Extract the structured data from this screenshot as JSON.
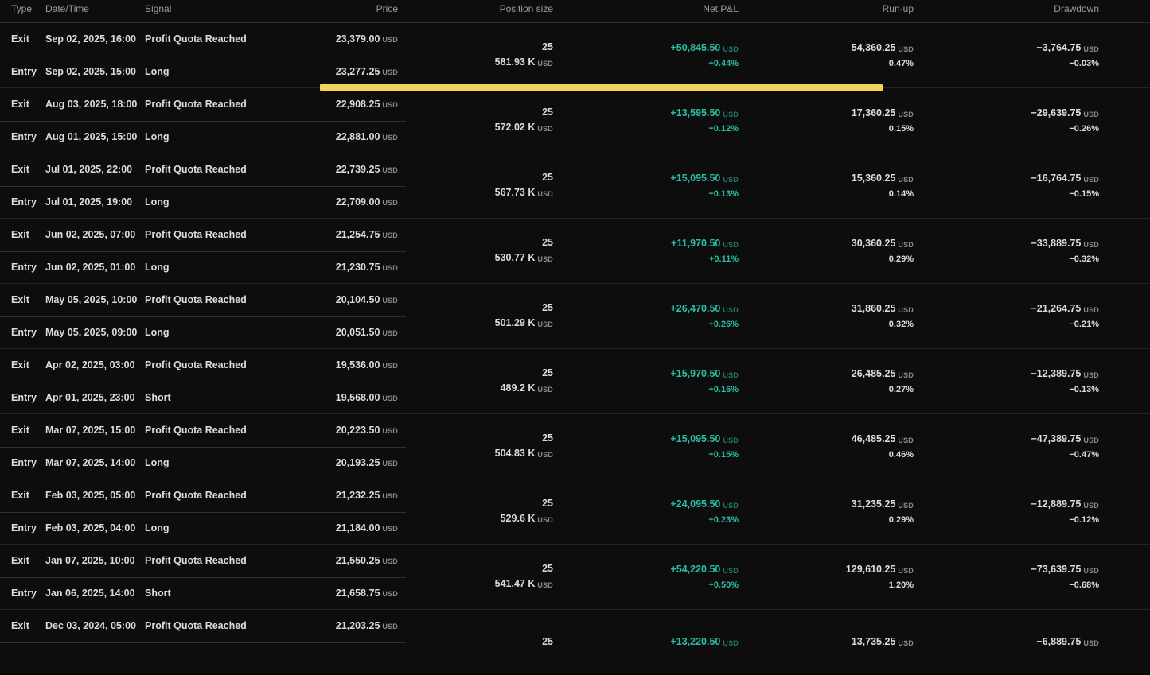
{
  "colors": {
    "background": "#0d0d0d",
    "text": "#dcdcdc",
    "header_text": "#9d9da1",
    "positive": "#2bbda1",
    "highlight": "#f3d45a",
    "divider": "#252525",
    "divider_strong": "#2f2f2f"
  },
  "table": {
    "columns": [
      "Type",
      "Date/Time",
      "Signal",
      "Price",
      "Position size",
      "Net P&L",
      "Run-up",
      "Drawdown"
    ],
    "currency": "USD",
    "highlight": {
      "trade_index": 0
    },
    "trades": [
      {
        "exit": {
          "type": "Exit",
          "datetime": "Sep 02, 2025, 16:00",
          "signal": "Profit Quota Reached",
          "price": "23,379.00"
        },
        "entry": {
          "type": "Entry",
          "datetime": "Sep 02, 2025, 15:00",
          "signal": "Long",
          "price": "23,277.25"
        },
        "position": {
          "qty": "25",
          "value": "581.93 K"
        },
        "net_pnl": {
          "value": "+50,845.50",
          "pct": "+0.44%"
        },
        "runup": {
          "value": "54,360.25",
          "pct": "0.47%"
        },
        "drawdown": {
          "value": "−3,764.75",
          "pct": "−0.03%"
        }
      },
      {
        "exit": {
          "type": "Exit",
          "datetime": "Aug 03, 2025, 18:00",
          "signal": "Profit Quota Reached",
          "price": "22,908.25"
        },
        "entry": {
          "type": "Entry",
          "datetime": "Aug 01, 2025, 15:00",
          "signal": "Long",
          "price": "22,881.00"
        },
        "position": {
          "qty": "25",
          "value": "572.02 K"
        },
        "net_pnl": {
          "value": "+13,595.50",
          "pct": "+0.12%"
        },
        "runup": {
          "value": "17,360.25",
          "pct": "0.15%"
        },
        "drawdown": {
          "value": "−29,639.75",
          "pct": "−0.26%"
        }
      },
      {
        "exit": {
          "type": "Exit",
          "datetime": "Jul 01, 2025, 22:00",
          "signal": "Profit Quota Reached",
          "price": "22,739.25"
        },
        "entry": {
          "type": "Entry",
          "datetime": "Jul 01, 2025, 19:00",
          "signal": "Long",
          "price": "22,709.00"
        },
        "position": {
          "qty": "25",
          "value": "567.73 K"
        },
        "net_pnl": {
          "value": "+15,095.50",
          "pct": "+0.13%"
        },
        "runup": {
          "value": "15,360.25",
          "pct": "0.14%"
        },
        "drawdown": {
          "value": "−16,764.75",
          "pct": "−0.15%"
        }
      },
      {
        "exit": {
          "type": "Exit",
          "datetime": "Jun 02, 2025, 07:00",
          "signal": "Profit Quota Reached",
          "price": "21,254.75"
        },
        "entry": {
          "type": "Entry",
          "datetime": "Jun 02, 2025, 01:00",
          "signal": "Long",
          "price": "21,230.75"
        },
        "position": {
          "qty": "25",
          "value": "530.77 K"
        },
        "net_pnl": {
          "value": "+11,970.50",
          "pct": "+0.11%"
        },
        "runup": {
          "value": "30,360.25",
          "pct": "0.29%"
        },
        "drawdown": {
          "value": "−33,889.75",
          "pct": "−0.32%"
        }
      },
      {
        "exit": {
          "type": "Exit",
          "datetime": "May 05, 2025, 10:00",
          "signal": "Profit Quota Reached",
          "price": "20,104.50"
        },
        "entry": {
          "type": "Entry",
          "datetime": "May 05, 2025, 09:00",
          "signal": "Long",
          "price": "20,051.50"
        },
        "position": {
          "qty": "25",
          "value": "501.29 K"
        },
        "net_pnl": {
          "value": "+26,470.50",
          "pct": "+0.26%"
        },
        "runup": {
          "value": "31,860.25",
          "pct": "0.32%"
        },
        "drawdown": {
          "value": "−21,264.75",
          "pct": "−0.21%"
        }
      },
      {
        "exit": {
          "type": "Exit",
          "datetime": "Apr 02, 2025, 03:00",
          "signal": "Profit Quota Reached",
          "price": "19,536.00"
        },
        "entry": {
          "type": "Entry",
          "datetime": "Apr 01, 2025, 23:00",
          "signal": "Short",
          "price": "19,568.00"
        },
        "position": {
          "qty": "25",
          "value": "489.2 K"
        },
        "net_pnl": {
          "value": "+15,970.50",
          "pct": "+0.16%"
        },
        "runup": {
          "value": "26,485.25",
          "pct": "0.27%"
        },
        "drawdown": {
          "value": "−12,389.75",
          "pct": "−0.13%"
        }
      },
      {
        "exit": {
          "type": "Exit",
          "datetime": "Mar 07, 2025, 15:00",
          "signal": "Profit Quota Reached",
          "price": "20,223.50"
        },
        "entry": {
          "type": "Entry",
          "datetime": "Mar 07, 2025, 14:00",
          "signal": "Long",
          "price": "20,193.25"
        },
        "position": {
          "qty": "25",
          "value": "504.83 K"
        },
        "net_pnl": {
          "value": "+15,095.50",
          "pct": "+0.15%"
        },
        "runup": {
          "value": "46,485.25",
          "pct": "0.46%"
        },
        "drawdown": {
          "value": "−47,389.75",
          "pct": "−0.47%"
        }
      },
      {
        "exit": {
          "type": "Exit",
          "datetime": "Feb 03, 2025, 05:00",
          "signal": "Profit Quota Reached",
          "price": "21,232.25"
        },
        "entry": {
          "type": "Entry",
          "datetime": "Feb 03, 2025, 04:00",
          "signal": "Long",
          "price": "21,184.00"
        },
        "position": {
          "qty": "25",
          "value": "529.6 K"
        },
        "net_pnl": {
          "value": "+24,095.50",
          "pct": "+0.23%"
        },
        "runup": {
          "value": "31,235.25",
          "pct": "0.29%"
        },
        "drawdown": {
          "value": "−12,889.75",
          "pct": "−0.12%"
        }
      },
      {
        "exit": {
          "type": "Exit",
          "datetime": "Jan 07, 2025, 10:00",
          "signal": "Profit Quota Reached",
          "price": "21,550.25"
        },
        "entry": {
          "type": "Entry",
          "datetime": "Jan 06, 2025, 14:00",
          "signal": "Short",
          "price": "21,658.75"
        },
        "position": {
          "qty": "25",
          "value": "541.47 K"
        },
        "net_pnl": {
          "value": "+54,220.50",
          "pct": "+0.50%"
        },
        "runup": {
          "value": "129,610.25",
          "pct": "1.20%"
        },
        "drawdown": {
          "value": "−73,639.75",
          "pct": "−0.68%"
        }
      },
      {
        "exit": {
          "type": "Exit",
          "datetime": "Dec 03, 2024, 05:00",
          "signal": "Profit Quota Reached",
          "price": "21,203.25"
        },
        "entry": null,
        "position": {
          "qty": "25"
        },
        "net_pnl": {
          "value": "+13,220.50"
        },
        "runup": {
          "value": "13,735.25"
        },
        "drawdown": {
          "value": "−6,889.75"
        }
      }
    ]
  }
}
